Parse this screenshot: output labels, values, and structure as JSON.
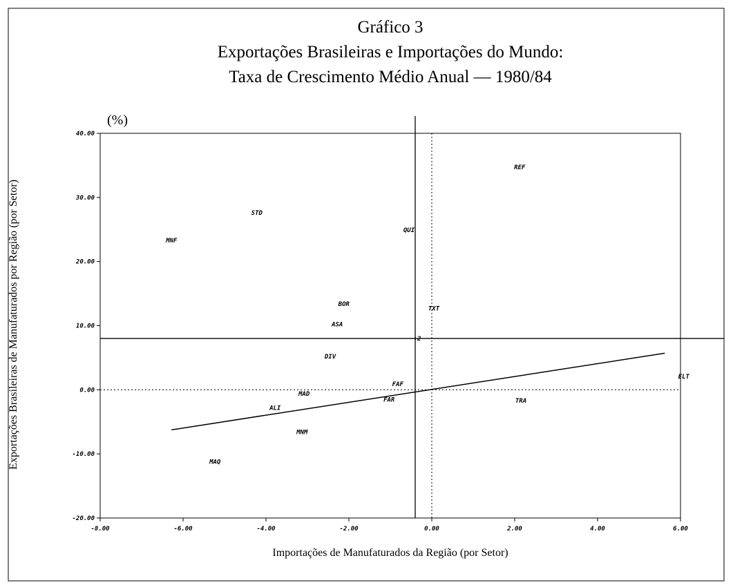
{
  "chart_data": {
    "type": "scatter",
    "title": "Gráfico 3",
    "subtitle": [
      "Exportações Brasileiras e Importações do Mundo:",
      "Taxa de Crescimento Médio Anual — 1980/84"
    ],
    "unit_label": "(%)",
    "xlabel": "Importações de Manufaturados da Região (por Setor)",
    "ylabel": "Exportações Brasileiras de Manufaturados por Região (por Setor)",
    "xlim": [
      -8,
      6
    ],
    "ylim": [
      -20,
      40
    ],
    "xticks": [
      {
        "value": -8,
        "label": "-8.00"
      },
      {
        "value": -6,
        "label": "-6.00"
      },
      {
        "value": -4,
        "label": "-4.00"
      },
      {
        "value": -2,
        "label": "-2.00"
      },
      {
        "value": 0,
        "label": "0.00"
      },
      {
        "value": 2,
        "label": "2.00"
      },
      {
        "value": 4,
        "label": "4.00"
      },
      {
        "value": 6,
        "label": "6.00"
      }
    ],
    "yticks": [
      {
        "value": -20,
        "label": "-20.00"
      },
      {
        "value": -10,
        "label": "-10.00"
      },
      {
        "value": 0,
        "label": "0.00"
      },
      {
        "value": 10,
        "label": "10.00"
      },
      {
        "value": 20,
        "label": "20.00"
      },
      {
        "value": 30,
        "label": "30.00"
      },
      {
        "value": 40,
        "label": "40.00"
      }
    ],
    "points": [
      {
        "label": "REF",
        "x": 2.12,
        "y": 34.7
      },
      {
        "label": "STD",
        "x": -4.22,
        "y": 27.6
      },
      {
        "label": "MNF",
        "x": -6.28,
        "y": 23.3
      },
      {
        "label": "QUI",
        "x": -0.55,
        "y": 24.9
      },
      {
        "label": "BOR",
        "x": -2.12,
        "y": 13.4
      },
      {
        "label": "TXT",
        "x": 0.05,
        "y": 12.7
      },
      {
        "label": "ASA",
        "x": -2.28,
        "y": 10.2
      },
      {
        "label": "+2",
        "x": -0.35,
        "y": 8.0
      },
      {
        "label": "DIV",
        "x": -2.45,
        "y": 5.2
      },
      {
        "label": "ELT",
        "x": 6.08,
        "y": 2.1
      },
      {
        "label": "FAF",
        "x": -0.82,
        "y": 0.9
      },
      {
        "label": "MAD",
        "x": -3.08,
        "y": -0.6
      },
      {
        "label": "FAR",
        "x": -1.03,
        "y": -1.5
      },
      {
        "label": "TRA",
        "x": 2.15,
        "y": -1.7
      },
      {
        "label": "ALI",
        "x": -3.78,
        "y": -2.8
      },
      {
        "label": "MNM",
        "x": -3.13,
        "y": -6.6
      },
      {
        "label": "MAQ",
        "x": -5.23,
        "y": -11.2
      }
    ],
    "mean_x": -0.4,
    "mean_y": 8.0,
    "trend": {
      "x": [
        -6.28,
        5.62
      ],
      "y": [
        -6.25,
        5.7
      ]
    }
  }
}
